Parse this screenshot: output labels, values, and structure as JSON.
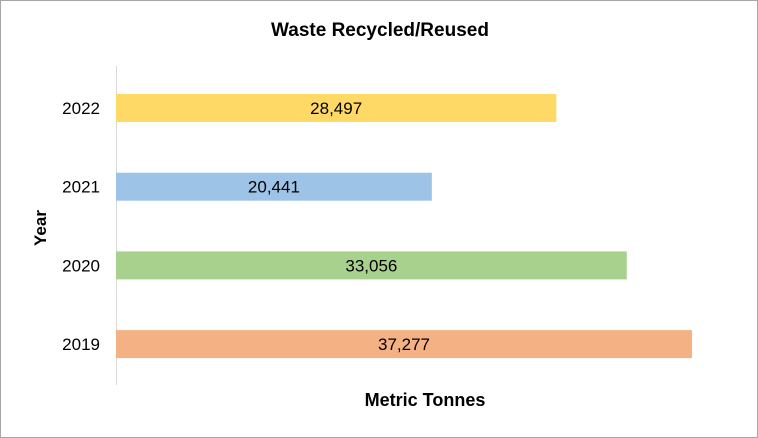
{
  "chart_data": {
    "type": "bar",
    "orientation": "horizontal",
    "title": "Waste Recycled/Reused",
    "xlabel": "Metric Tonnes",
    "ylabel": "Year",
    "categories": [
      "2022",
      "2021",
      "2020",
      "2019"
    ],
    "values": [
      28497,
      20441,
      33056,
      37277
    ],
    "value_labels": [
      "28,497",
      "20,441",
      "33,056",
      "37,277"
    ],
    "colors": [
      "#FFD966",
      "#9DC3E6",
      "#A9D18E",
      "#F4B183"
    ],
    "xlim": [
      0,
      37277
    ],
    "grid": false,
    "legend": "none"
  }
}
